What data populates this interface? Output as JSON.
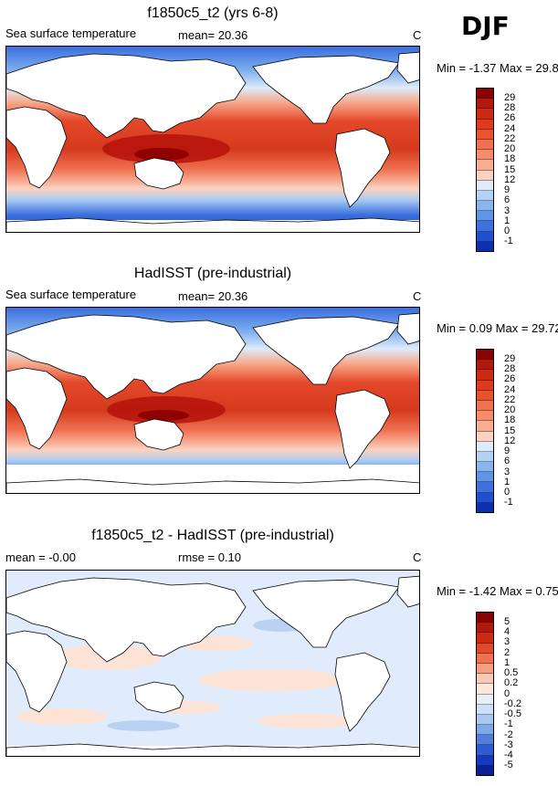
{
  "season": "DJF",
  "panels": [
    {
      "title": "f1850c5_t2 (yrs 6-8)",
      "left_label": "Sea surface temperature",
      "stat_label": "mean=",
      "stat_value": "20.36",
      "units": "C",
      "minmax_text": "Min = -1.37 Max = 29.80",
      "colorbar_ticks": [
        "29",
        "28",
        "26",
        "24",
        "22",
        "20",
        "18",
        "15",
        "12",
        "9",
        "6",
        "3",
        "1",
        "0",
        "-1"
      ],
      "colorbar_colors": [
        "#8b0000",
        "#b01a0a",
        "#cc2a12",
        "#dd3a1e",
        "#e8532f",
        "#f07050",
        "#f58c6a",
        "#f8ae93",
        "#fbd2c0",
        "#deebfa",
        "#b4d2f5",
        "#88b5ef",
        "#5f94e6",
        "#3d72dd",
        "#2050cf",
        "#0a2fb0"
      ]
    },
    {
      "title": "HadISST (pre-industrial)",
      "left_label": "Sea surface temperature",
      "stat_label": "mean=",
      "stat_value": "20.36",
      "units": "C",
      "minmax_text": "Min = 0.09 Max = 29.72",
      "colorbar_ticks": [
        "29",
        "28",
        "26",
        "24",
        "22",
        "20",
        "18",
        "15",
        "12",
        "9",
        "6",
        "3",
        "1",
        "0",
        "-1"
      ],
      "colorbar_colors": [
        "#8b0000",
        "#b01a0a",
        "#cc2a12",
        "#dd3a1e",
        "#e8532f",
        "#f07050",
        "#f58c6a",
        "#f8ae93",
        "#fbd2c0",
        "#deebfa",
        "#b4d2f5",
        "#88b5ef",
        "#5f94e6",
        "#3d72dd",
        "#2050cf",
        "#0a2fb0"
      ]
    },
    {
      "title": "f1850c5_t2 - HadISST (pre-industrial)",
      "left_label": "mean = -0.00",
      "stat_label": "rmse =",
      "stat_value": "0.10",
      "units": "C",
      "minmax_text": "Min = -1.42 Max = 0.75",
      "colorbar_ticks": [
        "5",
        "4",
        "3",
        "2",
        "1",
        "0.5",
        "0.2",
        "0",
        "-0.2",
        "-0.5",
        "-1",
        "-2",
        "-3",
        "-4",
        "-5"
      ],
      "colorbar_colors": [
        "#8b0000",
        "#b01a0a",
        "#cc2a12",
        "#e04a2a",
        "#f07050",
        "#f69e80",
        "#fac8b4",
        "#fde6da",
        "#e6f0fb",
        "#cde0f7",
        "#a9c8f1",
        "#7eaaea",
        "#527fdf",
        "#2f5bd2",
        "#1538bd",
        "#0a1f9a"
      ]
    }
  ]
}
